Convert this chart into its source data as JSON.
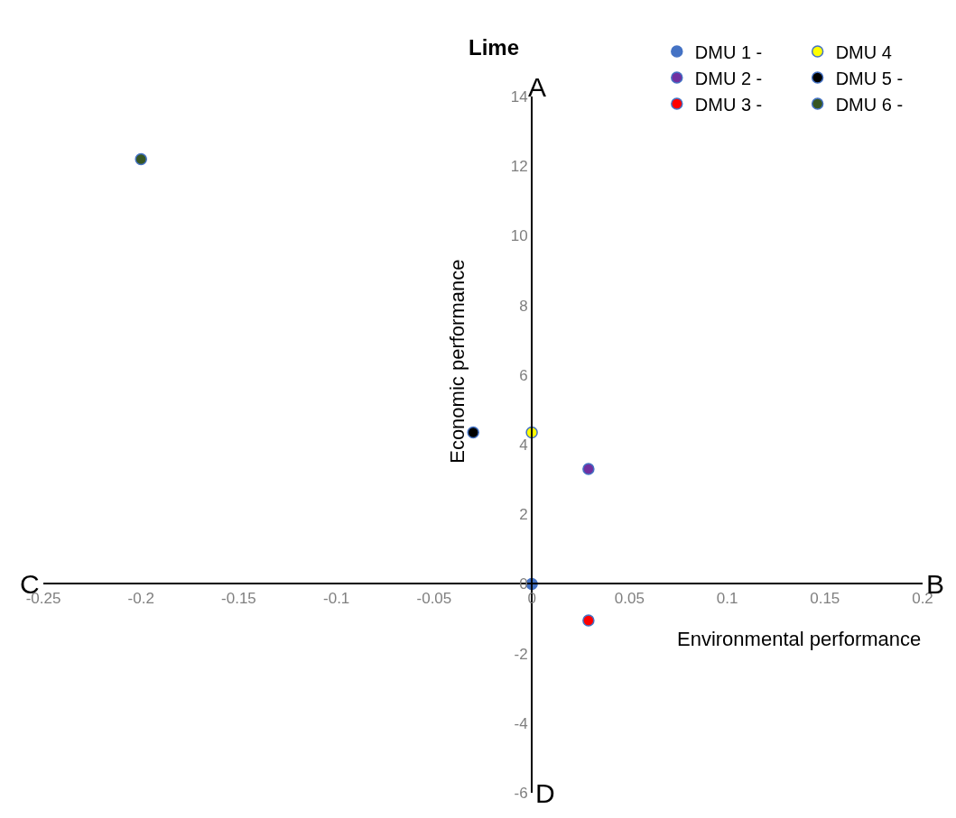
{
  "chart_data": {
    "type": "scatter",
    "title": "Lime",
    "xlabel": "Environmental performance",
    "ylabel": "Economic performance",
    "xlim": [
      -0.25,
      0.2
    ],
    "xticks": [
      -0.25,
      -0.2,
      -0.15,
      -0.1,
      -0.05,
      0,
      0.05,
      0.1,
      0.15,
      0.2
    ],
    "ylim": [
      -6,
      14
    ],
    "yticks": [
      -6,
      -4,
      -2,
      0,
      2,
      4,
      6,
      8,
      10,
      12,
      14
    ],
    "marker": "circle",
    "legend": "top right",
    "annotations": [
      "A",
      "B",
      "C",
      "D"
    ],
    "series": [
      {
        "name": "DMU 1 -",
        "color": "#4472c4",
        "x": [
          0
        ],
        "values": [
          0
        ]
      },
      {
        "name": "DMU 2 -",
        "color": "#7030a0",
        "x": [
          0.029
        ],
        "values": [
          3.3
        ]
      },
      {
        "name": "DMU 3 -",
        "color": "#ff0000",
        "x": [
          0.029
        ],
        "values": [
          -1.05
        ]
      },
      {
        "name": "DMU 4",
        "color": "#ffff00",
        "x": [
          0
        ],
        "values": [
          4.35
        ]
      },
      {
        "name": "DMU 5 -",
        "color": "#000000",
        "x": [
          -0.03
        ],
        "values": [
          4.35
        ]
      },
      {
        "name": "DMU 6 -",
        "color": "#375623",
        "x": [
          -0.2
        ],
        "values": [
          12.2
        ]
      }
    ]
  }
}
